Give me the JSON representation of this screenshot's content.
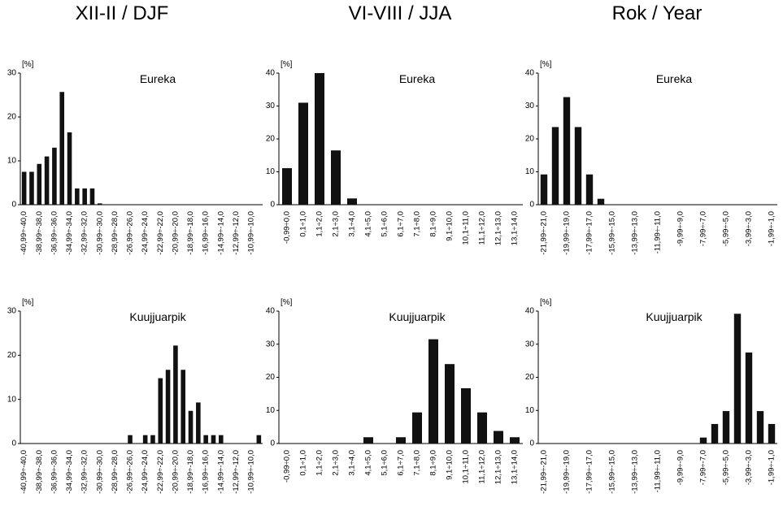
{
  "column_titles": [
    "XII-II / DJF",
    "VI-VIII / JJA",
    "Rok / Year"
  ],
  "chart_data": [
    {
      "type": "bar",
      "title": "Eureka",
      "y_unit": "[%]",
      "color": "#111111",
      "ylim": [
        0,
        30
      ],
      "yticks": [
        0,
        10,
        20,
        30
      ],
      "categories": [
        "-40,99÷-40,0",
        null,
        "-38,99÷-38,0",
        null,
        "-36,99÷-36,0",
        null,
        "-34,99÷-34,0",
        null,
        "-32,99÷-32,0",
        null,
        "-30,99÷-30,0",
        null,
        "-28,99÷-28,0",
        null,
        "-26,99÷-26,0",
        null,
        "-24,99÷-24,0",
        null,
        "-22,99÷-22,0",
        null,
        "-20,99÷-20,0",
        null,
        "-18,99÷-18,0",
        null,
        "-16,99÷-16,0",
        null,
        "-14,99÷-14,0",
        null,
        "-12,99÷-12,0",
        null,
        "-10,99÷-10,0",
        null
      ],
      "values": [
        7.5,
        7.5,
        9.3,
        11,
        13,
        25.7,
        16.5,
        3.7,
        3.7,
        3.7,
        0.3,
        0,
        0,
        0,
        0,
        0,
        0,
        0,
        0,
        0,
        0,
        0,
        0,
        0,
        0,
        0,
        0,
        0,
        0,
        0,
        0,
        0
      ]
    },
    {
      "type": "bar",
      "title": "Eureka",
      "y_unit": "[%]",
      "color": "#111111",
      "ylim": [
        0,
        40
      ],
      "yticks": [
        0,
        10,
        20,
        30,
        40
      ],
      "categories": [
        "-0,99÷0,0",
        "0,1÷1,0",
        "1,1÷2,0",
        "2,1÷3,0",
        "3,1÷4,0",
        "4,1÷5,0",
        "5,1÷6,0",
        "6,1÷7,0",
        "7,1÷8,0",
        "8,1÷9,0",
        "9,1÷10,0",
        "10,1÷11,0",
        "11,1÷12,0",
        "12,1÷13,0",
        "13,1÷14,0"
      ],
      "values": [
        11.1,
        31,
        40,
        16.5,
        1.9,
        0,
        0,
        0,
        0,
        0,
        0,
        0,
        0,
        0,
        0
      ]
    },
    {
      "type": "bar",
      "title": "Eureka",
      "y_unit": "[%]",
      "color": "#111111",
      "ylim": [
        0,
        40
      ],
      "yticks": [
        0,
        10,
        20,
        30,
        40
      ],
      "categories": [
        "-21,99÷-21,0",
        null,
        "-19,99÷-19,0",
        null,
        "-17,99÷-17,0",
        null,
        "-15,99÷-15,0",
        null,
        "-13,99÷-13,0",
        null,
        "-11,99÷-11,0",
        null,
        "-9,99÷-9,0",
        null,
        "-7,99÷-7,0",
        null,
        "-5,99÷-5,0",
        null,
        "-3,99÷-3,0",
        null,
        "-1,99÷-1,0"
      ],
      "values": [
        9.2,
        23.6,
        32.7,
        23.6,
        9.2,
        1.8,
        0,
        0,
        0,
        0,
        0,
        0,
        0,
        0,
        0,
        0,
        0,
        0,
        0,
        0,
        0
      ]
    },
    {
      "type": "bar",
      "title": "Kuujjuarpik",
      "y_unit": "[%]",
      "color": "#111111",
      "ylim": [
        0,
        30
      ],
      "yticks": [
        0,
        10,
        20,
        30
      ],
      "categories": [
        "-40,99÷-40,0",
        null,
        "-38,99÷-38,0",
        null,
        "-36,99÷-36,0",
        null,
        "-34,99÷-34,0",
        null,
        "-32,99÷-32,0",
        null,
        "-30,99÷-30,0",
        null,
        "-28,99÷-28,0",
        null,
        "-26,99÷-26,0",
        null,
        "-24,99÷-24,0",
        null,
        "-22,99÷-22,0",
        null,
        "-20,99÷-20,0",
        null,
        "-18,99÷-18,0",
        null,
        "-16,99÷-16,0",
        null,
        "-14,99÷-14,0",
        null,
        "-12,99÷-12,0",
        null,
        "-10,99÷-10,0",
        null
      ],
      "values": [
        0,
        0,
        0,
        0,
        0,
        0,
        0,
        0,
        0,
        0,
        0,
        0,
        0,
        0,
        1.9,
        0,
        1.9,
        1.9,
        14.8,
        16.7,
        22.2,
        16.7,
        7.4,
        9.3,
        1.9,
        1.9,
        1.9,
        0,
        0,
        0,
        0,
        1.9
      ]
    },
    {
      "type": "bar",
      "title": "Kuujjuarpik",
      "y_unit": "[%]",
      "color": "#111111",
      "ylim": [
        0,
        40
      ],
      "yticks": [
        0,
        10,
        20,
        30,
        40
      ],
      "categories": [
        "-0,99÷0,0",
        "0,1÷1,0",
        "1,1÷2,0",
        "2,1÷3,0",
        "3,1÷4,0",
        "4,1÷5,0",
        "5,1÷6,0",
        "6,1÷7,0",
        "7,1÷8,0",
        "8,1÷9,0",
        "9,1÷10,0",
        "10,1÷11,0",
        "11,1÷12,0",
        "12,1÷13,0",
        "13,1÷14,0"
      ],
      "values": [
        0,
        0,
        0,
        0,
        0,
        1.9,
        0,
        1.9,
        9.4,
        31.5,
        24,
        16.7,
        9.4,
        3.8,
        1.9
      ]
    },
    {
      "type": "bar",
      "title": "Kuujjuarpik",
      "y_unit": "[%]",
      "color": "#111111",
      "ylim": [
        0,
        40
      ],
      "yticks": [
        0,
        10,
        20,
        30,
        40
      ],
      "categories": [
        "-21,99÷-21,0",
        null,
        "-19,99÷-19,0",
        null,
        "-17,99÷-17,0",
        null,
        "-15,99÷-15,0",
        null,
        "-13,99÷-13,0",
        null,
        "-11,99÷-11,0",
        null,
        "-9,99÷-9,0",
        null,
        "-7,99÷-7,0",
        null,
        "-5,99÷-5,0",
        null,
        "-3,99÷-3,0",
        null,
        "-1,99÷-1,0"
      ],
      "values": [
        0,
        0,
        0,
        0,
        0,
        0,
        0,
        0,
        0,
        0,
        0,
        0,
        0,
        0,
        1.8,
        5.9,
        9.8,
        39.2,
        27.5,
        9.8,
        5.9
      ]
    }
  ]
}
